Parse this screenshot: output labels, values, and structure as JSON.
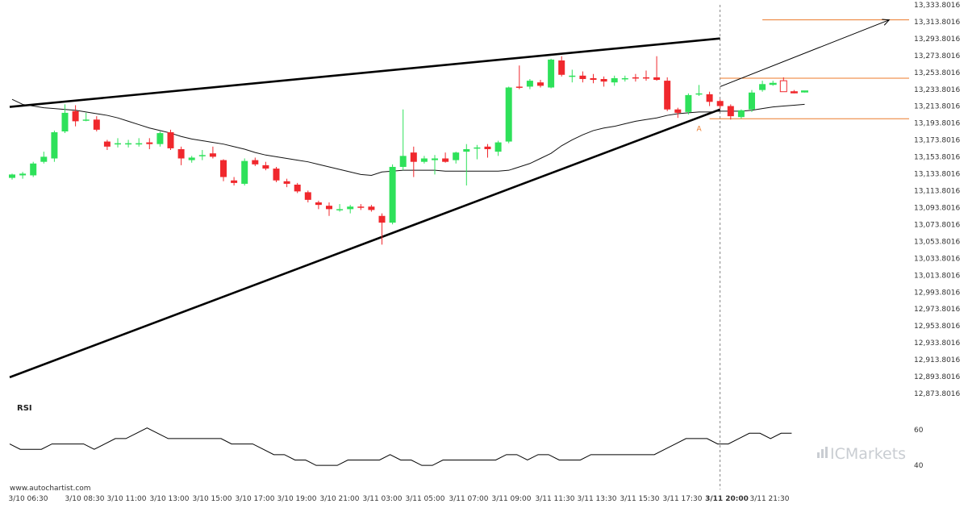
{
  "chart_data": [
    {
      "type": "candlestick",
      "ylim": [
        12873.8016,
        13333.8016
      ],
      "y_ticks": [
        "13,333.8016",
        "13,313.8016",
        "13,293.8016",
        "13,273.8016",
        "13,253.8016",
        "13,233.8016",
        "13,213.8016",
        "13,193.8016",
        "13,173.8016",
        "13,153.8016",
        "13,133.8016",
        "13,113.8016",
        "13,093.8016",
        "13,073.8016",
        "13,053.8016",
        "13,033.8016",
        "13,013.8016",
        "12,993.8016",
        "12,973.8016",
        "12,953.8016",
        "12,933.8016",
        "12,913.8016",
        "12,893.8016",
        "12,873.8016"
      ],
      "x_ticks": [
        "3/10 06:30",
        "3/10 08:30",
        "3/10 11:00",
        "3/10 13:00",
        "3/10 15:00",
        "3/10 17:00",
        "3/10 19:00",
        "3/10 21:00",
        "3/11 03:00",
        "3/11 05:00",
        "3/11 07:00",
        "3/11 09:00",
        "3/11 11:30",
        "3/11 13:30",
        "3/11 15:30",
        "3/11 17:30",
        "3/11 20:00",
        "3/11 21:30"
      ],
      "x_tick_bold": "3/11 20:00",
      "bar_count": 72,
      "candles": [
        {
          "o": 13129,
          "h": 13134,
          "l": 13127,
          "c": 13133
        },
        {
          "o": 13132,
          "h": 13136,
          "l": 13128,
          "c": 13134
        },
        {
          "o": 13132,
          "h": 13148,
          "l": 13130,
          "c": 13146
        },
        {
          "o": 13148,
          "h": 13160,
          "l": 13146,
          "c": 13154
        },
        {
          "o": 13152,
          "h": 13185,
          "l": 13148,
          "c": 13183
        },
        {
          "o": 13184,
          "h": 13216,
          "l": 13182,
          "c": 13206
        },
        {
          "o": 13208,
          "h": 13215,
          "l": 13190,
          "c": 13196
        },
        {
          "o": 13198,
          "h": 13206,
          "l": 13196,
          "c": 13198
        },
        {
          "o": 13198,
          "h": 13202,
          "l": 13184,
          "c": 13186
        },
        {
          "o": 13172,
          "h": 13174,
          "l": 13162,
          "c": 13166
        },
        {
          "o": 13170,
          "h": 13176,
          "l": 13165,
          "c": 13170
        },
        {
          "o": 13170,
          "h": 13174,
          "l": 13165,
          "c": 13170
        },
        {
          "o": 13170,
          "h": 13176,
          "l": 13166,
          "c": 13170
        },
        {
          "o": 13171,
          "h": 13176,
          "l": 13163,
          "c": 13169
        },
        {
          "o": 13169,
          "h": 13184,
          "l": 13166,
          "c": 13182
        },
        {
          "o": 13183,
          "h": 13186,
          "l": 13162,
          "c": 13164
        },
        {
          "o": 13163,
          "h": 13166,
          "l": 13144,
          "c": 13152
        },
        {
          "o": 13150,
          "h": 13155,
          "l": 13147,
          "c": 13153
        },
        {
          "o": 13156,
          "h": 13162,
          "l": 13150,
          "c": 13156
        },
        {
          "o": 13158,
          "h": 13166,
          "l": 13152,
          "c": 13154
        },
        {
          "o": 13150,
          "h": 13151,
          "l": 13125,
          "c": 13130
        },
        {
          "o": 13126,
          "h": 13130,
          "l": 13120,
          "c": 13123
        },
        {
          "o": 13122,
          "h": 13152,
          "l": 13120,
          "c": 13149
        },
        {
          "o": 13150,
          "h": 13153,
          "l": 13143,
          "c": 13145
        },
        {
          "o": 13144,
          "h": 13148,
          "l": 13138,
          "c": 13140
        },
        {
          "o": 13140,
          "h": 13142,
          "l": 13124,
          "c": 13126
        },
        {
          "o": 13125,
          "h": 13128,
          "l": 13118,
          "c": 13122
        },
        {
          "o": 13121,
          "h": 13123,
          "l": 13111,
          "c": 13113
        },
        {
          "o": 13112,
          "h": 13114,
          "l": 13100,
          "c": 13103
        },
        {
          "o": 13100,
          "h": 13102,
          "l": 13092,
          "c": 13097
        },
        {
          "o": 13096,
          "h": 13100,
          "l": 13084,
          "c": 13092
        },
        {
          "o": 13091,
          "h": 13098,
          "l": 13089,
          "c": 13092
        },
        {
          "o": 13092,
          "h": 13097,
          "l": 13087,
          "c": 13095
        },
        {
          "o": 13095,
          "h": 13098,
          "l": 13091,
          "c": 13094
        },
        {
          "o": 13095,
          "h": 13097,
          "l": 13089,
          "c": 13091
        },
        {
          "o": 13084,
          "h": 13087,
          "l": 13050,
          "c": 13076
        },
        {
          "o": 13076,
          "h": 13145,
          "l": 13074,
          "c": 13142
        },
        {
          "o": 13142,
          "h": 13210,
          "l": 13138,
          "c": 13155
        },
        {
          "o": 13159,
          "h": 13166,
          "l": 13130,
          "c": 13148
        },
        {
          "o": 13148,
          "h": 13155,
          "l": 13146,
          "c": 13152
        },
        {
          "o": 13150,
          "h": 13156,
          "l": 13133,
          "c": 13152
        },
        {
          "o": 13152,
          "h": 13159,
          "l": 13147,
          "c": 13148
        },
        {
          "o": 13150,
          "h": 13160,
          "l": 13146,
          "c": 13159
        },
        {
          "o": 13160,
          "h": 13169,
          "l": 13120,
          "c": 13163
        },
        {
          "o": 13165,
          "h": 13168,
          "l": 13151,
          "c": 13165
        },
        {
          "o": 13166,
          "h": 13169,
          "l": 13153,
          "c": 13163
        },
        {
          "o": 13160,
          "h": 13173,
          "l": 13155,
          "c": 13171
        },
        {
          "o": 13172,
          "h": 13237,
          "l": 13170,
          "c": 13236
        },
        {
          "o": 13237,
          "h": 13262,
          "l": 13234,
          "c": 13236
        },
        {
          "o": 13237,
          "h": 13246,
          "l": 13234,
          "c": 13244
        },
        {
          "o": 13242,
          "h": 13245,
          "l": 13236,
          "c": 13238
        },
        {
          "o": 13236,
          "h": 13270,
          "l": 13235,
          "c": 13269
        },
        {
          "o": 13268,
          "h": 13273,
          "l": 13249,
          "c": 13251
        },
        {
          "o": 13250,
          "h": 13257,
          "l": 13242,
          "c": 13250
        },
        {
          "o": 13250,
          "h": 13255,
          "l": 13242,
          "c": 13246
        },
        {
          "o": 13247,
          "h": 13252,
          "l": 13241,
          "c": 13245
        },
        {
          "o": 13246,
          "h": 13249,
          "l": 13237,
          "c": 13243
        },
        {
          "o": 13242,
          "h": 13250,
          "l": 13238,
          "c": 13247
        },
        {
          "o": 13247,
          "h": 13250,
          "l": 13243,
          "c": 13247
        },
        {
          "o": 13248,
          "h": 13252,
          "l": 13243,
          "c": 13247
        },
        {
          "o": 13248,
          "h": 13256,
          "l": 13244,
          "c": 13247
        },
        {
          "o": 13248,
          "h": 13273,
          "l": 13244,
          "c": 13245
        },
        {
          "o": 13244,
          "h": 13248,
          "l": 13208,
          "c": 13210
        },
        {
          "o": 13210,
          "h": 13212,
          "l": 13200,
          "c": 13206
        },
        {
          "o": 13207,
          "h": 13229,
          "l": 13204,
          "c": 13227
        },
        {
          "o": 13228,
          "h": 13239,
          "l": 13226,
          "c": 13229
        },
        {
          "o": 13228,
          "h": 13231,
          "l": 13214,
          "c": 13219
        },
        {
          "o": 13220,
          "h": 13222,
          "l": 13211,
          "c": 13214
        },
        {
          "o": 13214,
          "h": 13216,
          "l": 13198,
          "c": 13202
        },
        {
          "o": 13201,
          "h": 13210,
          "l": 13199,
          "c": 13209
        },
        {
          "o": 13210,
          "h": 13233,
          "l": 13207,
          "c": 13230
        },
        {
          "o": 13233,
          "h": 13244,
          "l": 13231,
          "c": 13240
        }
      ],
      "extra_candles": [
        {
          "o": 13240,
          "h": 13244,
          "l": 13238,
          "c": 13241
        },
        {
          "o": 13244,
          "h": 13248,
          "l": 13231,
          "c": 13231
        },
        {
          "o": 13231,
          "h": 13233,
          "l": 13229,
          "c": 13230
        },
        {
          "o": 13231,
          "h": 13232,
          "l": 13230,
          "c": 13232
        }
      ],
      "moving_average": [
        13222,
        13216,
        13214,
        13212,
        13211,
        13210,
        13209,
        13207,
        13205,
        13203,
        13200,
        13196,
        13192,
        13188,
        13185,
        13182,
        13178,
        13175,
        13173,
        13171,
        13169,
        13166,
        13163,
        13159,
        13156,
        13154,
        13152,
        13150,
        13148,
        13145,
        13142,
        13139,
        13136,
        13133,
        13132,
        13136,
        13137,
        13138,
        13138,
        13138,
        13138,
        13137,
        13137,
        13137,
        13137,
        13137,
        13137,
        13138,
        13142,
        13146,
        13152,
        13158,
        13167,
        13174,
        13180,
        13185,
        13188,
        13190,
        13193,
        13196,
        13198,
        13200,
        13203,
        13205,
        13206,
        13207,
        13207,
        13208,
        13208,
        13208,
        13209,
        13211,
        13213,
        13214,
        13215,
        13216
      ],
      "colors": {
        "up": "#2ee15a",
        "down": "#f0282d",
        "line": "#000000",
        "level": "#ec7a2a"
      },
      "trendlines": [
        {
          "name": "upper",
          "from": {
            "bar": 0,
            "value": 13213
          },
          "to": {
            "bar": 67,
            "value": 13294
          }
        },
        {
          "name": "lower",
          "from": {
            "bar": 0,
            "value": 12893
          },
          "to": {
            "bar": 67,
            "value": 13210
          }
        }
      ],
      "forecast_arrow": {
        "from": {
          "bar": 67,
          "value": 13237
        },
        "to": {
          "bar": 83,
          "value": 13316
        }
      },
      "levels": [
        {
          "value": 13247,
          "from_bar": 67,
          "to_bar": 85
        },
        {
          "value": 13199,
          "from_bar": 66,
          "to_bar": 85
        },
        {
          "value": 13316,
          "from_bar": 71,
          "to_bar": 85
        }
      ],
      "marker": {
        "label": "A",
        "bar": 65,
        "value": 13196
      },
      "vline_bar": 67
    },
    {
      "type": "line",
      "title": "RSI",
      "ylim": [
        36,
        64
      ],
      "y_ticks": [
        "60",
        "40"
      ],
      "values": [
        52,
        49,
        49,
        49,
        52,
        52,
        52,
        52,
        49,
        52,
        55,
        55,
        58,
        61,
        58,
        55,
        55,
        55,
        55,
        55,
        55,
        52,
        52,
        52,
        49,
        46,
        46,
        43,
        43,
        40,
        40,
        40,
        43,
        43,
        43,
        43,
        46,
        43,
        43,
        40,
        40,
        43,
        43,
        43,
        43,
        43,
        43,
        46,
        46,
        43,
        46,
        46,
        43,
        43,
        43,
        46,
        46,
        46,
        46,
        46,
        46,
        46,
        49,
        52,
        55,
        55,
        55,
        52,
        52,
        55,
        58,
        58,
        55,
        58,
        58
      ]
    }
  ],
  "footer": {
    "source": "www.autochartist.com",
    "brand": "ICMarkets"
  }
}
